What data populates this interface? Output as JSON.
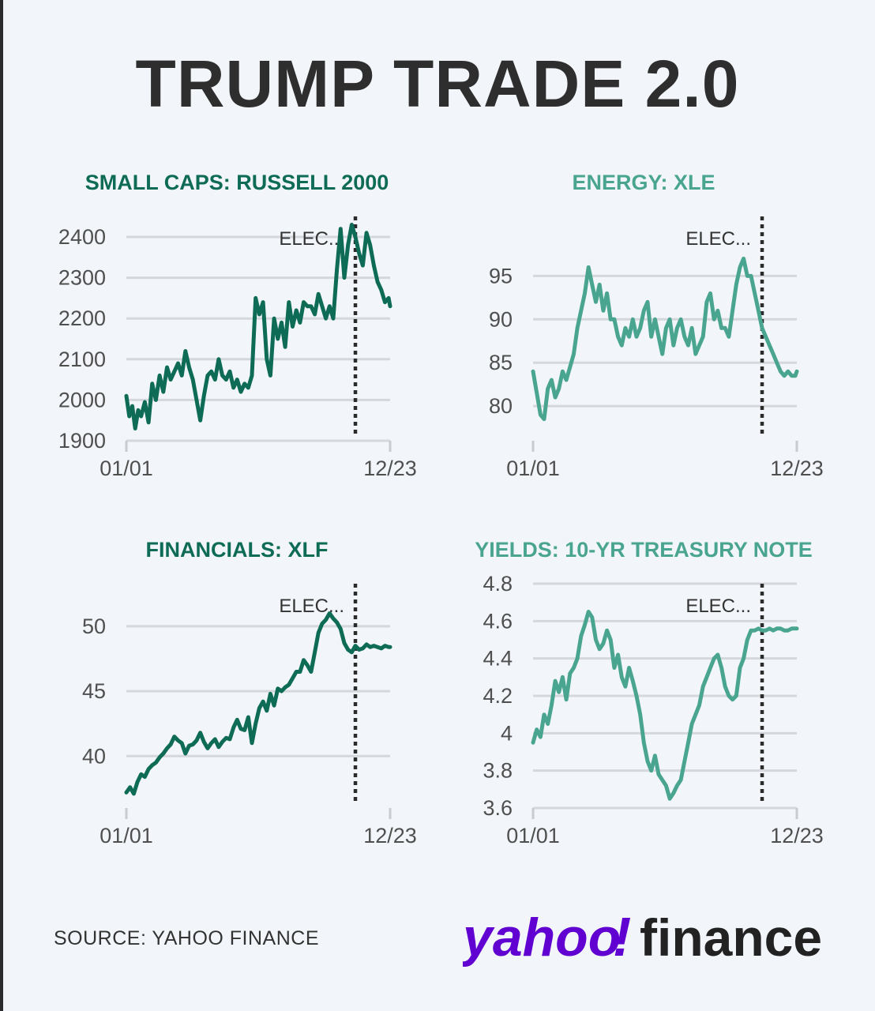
{
  "headline": "TRUMP TRADE 2.0",
  "source": "SOURCE: YAHOO FINANCE",
  "logo": {
    "brand": "yahoo",
    "bang": "!",
    "product": "finance"
  },
  "colors": {
    "dark_green": "#0e6b55",
    "light_green": "#4aa590",
    "text": "#2e2e2e",
    "yahoo_purple": "#6001d2"
  },
  "chart_data": [
    {
      "type": "line",
      "title": "SMALL CAPS: RUSSELL 2000",
      "color": "#0e6b55",
      "x_labels": [
        "01/01",
        "12/23"
      ],
      "x_range": [
        0,
        357
      ],
      "y_ticks": [
        "1900",
        "2000",
        "2100",
        "2200",
        "2300",
        "2400"
      ],
      "ylim": [
        1900,
        2400
      ],
      "event": {
        "label": "ELEC...",
        "x": 310
      },
      "x": [
        0,
        4,
        8,
        12,
        16,
        20,
        25,
        30,
        35,
        40,
        45,
        50,
        55,
        60,
        65,
        70,
        75,
        80,
        85,
        90,
        95,
        100,
        105,
        110,
        115,
        120,
        125,
        130,
        135,
        140,
        145,
        150,
        155,
        160,
        165,
        170,
        175,
        180,
        185,
        190,
        195,
        200,
        205,
        210,
        215,
        220,
        225,
        230,
        235,
        240,
        245,
        250,
        255,
        260,
        265,
        270,
        275,
        280,
        285,
        290,
        295,
        300,
        305,
        310,
        315,
        320,
        325,
        330,
        335,
        340,
        345,
        350,
        355,
        357
      ],
      "values": [
        2010,
        1960,
        1985,
        1930,
        1975,
        1960,
        1995,
        1945,
        2040,
        2000,
        2060,
        2020,
        2080,
        2050,
        2070,
        2090,
        2060,
        2120,
        2080,
        2050,
        2000,
        1950,
        2010,
        2060,
        2070,
        2050,
        2100,
        2060,
        2050,
        2070,
        2030,
        2050,
        2020,
        2040,
        2030,
        2060,
        2250,
        2210,
        2240,
        2100,
        2060,
        2200,
        2150,
        2190,
        2130,
        2240,
        2180,
        2220,
        2190,
        2240,
        2230,
        2230,
        2210,
        2260,
        2230,
        2200,
        2230,
        2200,
        2320,
        2420,
        2300,
        2380,
        2430,
        2400,
        2360,
        2330,
        2410,
        2380,
        2330,
        2290,
        2270,
        2240,
        2250,
        2230
      ],
      "line_width": 5
    },
    {
      "type": "line",
      "title": "ENERGY: XLE",
      "color": "#4aa590",
      "x_labels": [
        "01/01",
        "12/23"
      ],
      "x_range": [
        0,
        357
      ],
      "y_ticks": [
        "80",
        "85",
        "90",
        "95"
      ],
      "ylim": [
        76,
        99.5
      ],
      "event": {
        "label": "ELEC...",
        "x": 310
      },
      "x": [
        0,
        5,
        10,
        15,
        20,
        25,
        30,
        35,
        40,
        45,
        50,
        55,
        60,
        65,
        70,
        75,
        80,
        85,
        90,
        95,
        100,
        105,
        110,
        115,
        120,
        125,
        130,
        135,
        140,
        145,
        150,
        155,
        160,
        165,
        170,
        175,
        180,
        185,
        190,
        195,
        200,
        205,
        210,
        215,
        220,
        225,
        230,
        235,
        240,
        245,
        250,
        255,
        260,
        265,
        270,
        275,
        280,
        285,
        290,
        295,
        300,
        305,
        310,
        315,
        320,
        325,
        330,
        335,
        340,
        345,
        350,
        355,
        357
      ],
      "values": [
        84,
        81.5,
        79,
        78.5,
        82,
        83,
        81,
        82,
        84,
        83,
        84.5,
        86,
        89,
        91,
        93,
        96,
        94,
        92,
        94,
        91,
        93,
        90,
        90,
        88,
        87,
        89,
        88,
        90,
        88,
        89,
        91,
        92,
        88,
        90,
        88,
        86,
        89,
        90,
        87,
        89,
        90,
        88,
        87,
        89,
        86,
        87,
        88,
        92,
        93,
        90,
        91,
        89,
        89,
        88,
        91,
        94,
        96,
        97,
        95,
        95,
        93,
        91,
        89,
        88,
        87,
        86,
        85,
        84,
        83.5,
        84,
        83.5,
        83.5,
        84
      ]
    },
    {
      "type": "line",
      "title": "FINANCIALS: XLF",
      "color": "#0e6b55",
      "x_labels": [
        "01/01",
        "12/23"
      ],
      "x_range": [
        0,
        357
      ],
      "y_ticks": [
        "40",
        "45",
        "50"
      ],
      "ylim": [
        36,
        51.7
      ],
      "event": {
        "label": "ELEC...",
        "x": 310
      },
      "x": [
        0,
        5,
        10,
        15,
        20,
        25,
        30,
        35,
        40,
        45,
        50,
        55,
        60,
        65,
        70,
        75,
        80,
        85,
        90,
        95,
        100,
        105,
        110,
        115,
        120,
        125,
        130,
        135,
        140,
        145,
        150,
        155,
        160,
        165,
        170,
        175,
        180,
        185,
        190,
        195,
        200,
        205,
        210,
        215,
        220,
        225,
        230,
        235,
        240,
        245,
        250,
        255,
        260,
        265,
        270,
        275,
        280,
        285,
        290,
        295,
        300,
        305,
        310,
        315,
        320,
        325,
        330,
        335,
        340,
        345,
        350,
        355,
        357
      ],
      "values": [
        37.2,
        37.6,
        37.1,
        38,
        38.6,
        38.4,
        39,
        39.3,
        39.5,
        39.9,
        40.2,
        40.6,
        40.9,
        41.5,
        41.2,
        41.0,
        40.2,
        40.8,
        40.9,
        41.2,
        41.8,
        41.1,
        40.6,
        41.0,
        41.3,
        40.7,
        41.1,
        41.4,
        41.3,
        42.2,
        42.8,
        42.1,
        42.0,
        43.0,
        41.0,
        42.5,
        43.7,
        44.2,
        43.5,
        44.8,
        43.9,
        45.2,
        45.0,
        45.3,
        45.5,
        46.0,
        46.5,
        46.5,
        47.4,
        47.0,
        46.5,
        48.0,
        49.5,
        50.2,
        50.5,
        51.0,
        50.6,
        50.3,
        49.8,
        48.7,
        48.2,
        48.0,
        48.5,
        48.2,
        48.3,
        48.6,
        48.4,
        48.5,
        48.4,
        48.3,
        48.5,
        48.4,
        48.4
      ]
    },
    {
      "type": "line",
      "title": "YIELDS: 10-YR TREASURY NOTE",
      "color": "#4aa590",
      "x_labels": [
        "01/01",
        "12/23"
      ],
      "x_range": [
        0,
        357
      ],
      "y_ticks": [
        "3.6",
        "3.8",
        "4",
        "4.2",
        "4.4",
        "4.6",
        "4.8"
      ],
      "ylim": [
        3.6,
        4.8
      ],
      "event": {
        "label": "ELEC...",
        "x": 310
      },
      "x": [
        0,
        5,
        10,
        15,
        20,
        25,
        30,
        35,
        40,
        45,
        50,
        55,
        60,
        65,
        70,
        75,
        80,
        85,
        90,
        95,
        100,
        105,
        110,
        115,
        120,
        125,
        130,
        135,
        140,
        145,
        150,
        155,
        160,
        165,
        170,
        175,
        180,
        185,
        190,
        195,
        200,
        205,
        210,
        215,
        220,
        225,
        230,
        235,
        240,
        245,
        250,
        255,
        260,
        265,
        270,
        275,
        280,
        285,
        290,
        295,
        300,
        305,
        310,
        315,
        320,
        325,
        330,
        335,
        340,
        345,
        350,
        355,
        357
      ],
      "values": [
        3.95,
        4.02,
        3.98,
        4.1,
        4.05,
        4.15,
        4.28,
        4.22,
        4.3,
        4.18,
        4.32,
        4.35,
        4.4,
        4.52,
        4.58,
        4.65,
        4.62,
        4.5,
        4.45,
        4.48,
        4.55,
        4.5,
        4.35,
        4.42,
        4.3,
        4.25,
        4.35,
        4.28,
        4.2,
        4.1,
        3.95,
        3.85,
        3.8,
        3.88,
        3.78,
        3.75,
        3.72,
        3.65,
        3.68,
        3.72,
        3.75,
        3.85,
        3.95,
        4.05,
        4.1,
        4.15,
        4.25,
        4.3,
        4.35,
        4.4,
        4.42,
        4.35,
        4.25,
        4.2,
        4.18,
        4.2,
        4.35,
        4.4,
        4.5,
        4.55,
        4.55,
        4.56,
        4.55,
        4.55,
        4.56,
        4.55,
        4.56,
        4.56,
        4.55,
        4.55,
        4.56,
        4.56,
        4.56
      ]
    }
  ]
}
